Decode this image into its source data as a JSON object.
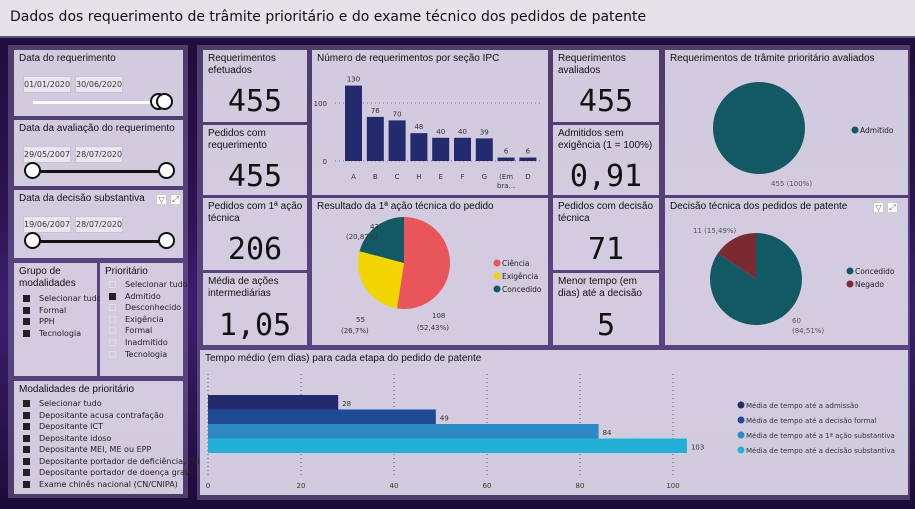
{
  "header": {
    "title": "Dados dos requerimento de trâmite prioritário e do exame técnico dos pedidos de patente"
  },
  "filters": {
    "data_requerimento": {
      "label": "Data do requerimento",
      "start": "01/01/2020",
      "end": "30/06/2020"
    },
    "data_avaliacao": {
      "label": "Data da avaliação do requerimento",
      "start": "29/05/2007",
      "end": "28/07/2020"
    },
    "data_decisao": {
      "label": "Data da decisão substantiva",
      "start": "19/06/2007",
      "end": "28/07/2020"
    },
    "grupo": {
      "label": "Grupo de modalidades",
      "items": [
        {
          "label": "Selecionar tudo",
          "checked": true
        },
        {
          "label": "Formal",
          "checked": true
        },
        {
          "label": "PPH",
          "checked": true
        },
        {
          "label": "Tecnologia",
          "checked": true
        }
      ]
    },
    "prioritario": {
      "label": "Prioritário",
      "items": [
        {
          "label": "Selecionar tudo",
          "checked": false
        },
        {
          "label": "Admitido",
          "checked": true
        },
        {
          "label": "Desconhecido",
          "checked": false
        },
        {
          "label": "Exigência",
          "checked": false
        },
        {
          "label": "Formal",
          "checked": false
        },
        {
          "label": "Inadmitido",
          "checked": false
        },
        {
          "label": "Tecnologia",
          "checked": false
        }
      ]
    },
    "modalidades": {
      "label": "Modalidades de prioritário",
      "items": [
        {
          "label": "Selecionar tudo",
          "checked": true
        },
        {
          "label": "Depositante acusa contrafação",
          "checked": true
        },
        {
          "label": "Depositante ICT",
          "checked": true
        },
        {
          "label": "Depositante idoso",
          "checked": true
        },
        {
          "label": "Depositante MEI, ME ou EPP",
          "checked": true
        },
        {
          "label": "Depositante portador de deficiência, físi...",
          "checked": true
        },
        {
          "label": "Depositante portador de doença grave",
          "checked": true
        },
        {
          "label": "Exame chinês nacional (CN/CNIPA)",
          "checked": true
        }
      ]
    }
  },
  "kpis": {
    "req_efetuados": {
      "label": "Requerimentos efetuados",
      "value": "455"
    },
    "pedidos_req": {
      "label": "Pedidos com requerimento",
      "value": "455"
    },
    "pedidos_acao": {
      "label": "Pedidos com 1ª ação técnica",
      "value": "206"
    },
    "media_acoes": {
      "label": "Média de ações intermediárias",
      "value": "1,05"
    },
    "req_avaliados": {
      "label": "Requerimentos avaliados",
      "value": "455"
    },
    "admitidos": {
      "label": "Admitidos sem exigência (1 = 100%)",
      "value": "0,91"
    },
    "decisao_tecnica": {
      "label": "Pedidos com decisão técnica",
      "value": "71"
    },
    "menor_tempo": {
      "label": "Menor tempo (em dias) até a decisão",
      "value": "5"
    }
  },
  "chart_data": [
    {
      "type": "bar",
      "title": "Número de requerimentos por seção IPC",
      "categories": [
        "A",
        "B",
        "C",
        "H",
        "E",
        "F",
        "G",
        "(Em bra...",
        "D"
      ],
      "values": [
        130,
        76,
        70,
        48,
        40,
        40,
        39,
        6,
        6
      ],
      "yticks": [
        0,
        100
      ],
      "color": "#232a6e",
      "grid": true
    },
    {
      "type": "pie",
      "title": "Resultado da 1ª ação técnica do pedido",
      "legend_position": "right",
      "slices": [
        {
          "name": "Ciência",
          "value": 108,
          "label": "108",
          "pct": "(52,43%)",
          "color": "#e8555a"
        },
        {
          "name": "Exigência",
          "value": 55,
          "label": "55",
          "pct": "(26,7%)",
          "color": "#f2d500"
        },
        {
          "name": "Concedido",
          "value": 43,
          "label": "43",
          "pct": "(20,87%)",
          "color": "#135963"
        }
      ]
    },
    {
      "type": "pie",
      "title": "Requerimentos de trâmite prioritário avaliados",
      "legend_position": "right",
      "slices": [
        {
          "name": "Admitido",
          "value": 455,
          "label": "455 (100%)",
          "color": "#135963"
        }
      ]
    },
    {
      "type": "pie",
      "title": "Decisão técnica dos pedidos de patente",
      "legend_position": "right",
      "slices": [
        {
          "name": "Concedido",
          "value": 60,
          "label": "60",
          "pct": "(84,51%)",
          "color": "#135963"
        },
        {
          "name": "Negado",
          "value": 11,
          "label": "11 (15,49%)",
          "color": "#7a2a30"
        }
      ]
    },
    {
      "type": "bar",
      "orientation": "horizontal",
      "title": "Tempo médio (em dias) para cada etapa do pedido de patente",
      "xticks": [
        0,
        20,
        40,
        60,
        80,
        100
      ],
      "legend_position": "right",
      "series": [
        {
          "name": "Média de tempo até a admissão",
          "value": 28,
          "color": "#232a6e"
        },
        {
          "name": "Média de tempo até a decisão formal",
          "value": 49,
          "color": "#1f4a94"
        },
        {
          "name": "Média de tempo até a 1ª ação substantiva",
          "value": 84,
          "color": "#2e8ac4"
        },
        {
          "name": "Média de tempo até a decisão substantiva",
          "value": 103,
          "color": "#23b0d6"
        }
      ]
    }
  ]
}
